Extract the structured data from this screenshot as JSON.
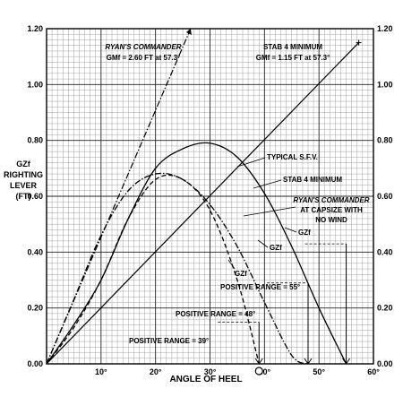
{
  "chart_data": {
    "type": "line",
    "xlabel": "ANGLE OF HEEL",
    "ylabel_lines": [
      "GZf",
      "RIGHTING",
      "LEVER",
      "(FT)"
    ],
    "x_unit": "degrees",
    "xlim": [
      0,
      60
    ],
    "ylim": [
      0,
      1.2
    ],
    "x_ticks": [
      10,
      20,
      30,
      40,
      50,
      60
    ],
    "x_tick_labels": [
      "10°",
      "20°",
      "30°",
      "40°",
      "50°",
      "60°"
    ],
    "y_ticks": [
      0,
      0.2,
      0.4,
      0.6,
      0.8,
      1.0,
      1.2
    ],
    "y_tick_labels": [
      "0.00",
      "0.20",
      "0.40",
      "0.60",
      "0.80",
      "1.00",
      "1.20"
    ],
    "grid": true,
    "series": [
      {
        "name": "RYAN'S COMMANDER",
        "style": "dash-dot",
        "x": [
          0,
          5,
          10,
          15,
          20,
          25,
          30,
          35,
          40,
          45,
          48
        ],
        "y": [
          0,
          0.23,
          0.46,
          0.62,
          0.68,
          0.66,
          0.57,
          0.42,
          0.22,
          0.03,
          0
        ]
      },
      {
        "name": "TYPICAL S.F.V.",
        "style": "solid",
        "x": [
          0,
          5,
          10,
          15,
          20,
          25,
          30,
          35,
          40,
          45,
          50,
          55
        ],
        "y": [
          0,
          0.14,
          0.3,
          0.52,
          0.7,
          0.77,
          0.79,
          0.74,
          0.61,
          0.42,
          0.2,
          0
        ]
      },
      {
        "name": "STAB 4 MINIMUM",
        "style": "dashed",
        "x": [
          0,
          5,
          10,
          15,
          20,
          25,
          30,
          35,
          39
        ],
        "y": [
          0,
          0.13,
          0.3,
          0.52,
          0.66,
          0.66,
          0.55,
          0.3,
          0
        ]
      }
    ],
    "reference_lines": [
      {
        "name": "RYAN'S COMMANDER GMf",
        "x": [
          0,
          57.3
        ],
        "y": [
          0,
          2.6
        ]
      },
      {
        "name": "STAB 4 MINIMUM GMf",
        "x": [
          0,
          57.3
        ],
        "y": [
          0,
          1.15
        ]
      }
    ],
    "annotations": {
      "ryans_gm_title": "RYAN'S COMMANDER",
      "ryans_gm_value": "GMf = 2.60 FT at 57.3°",
      "stab_gm_title": "STAB 4 MINIMUM",
      "stab_gm_value": "GMf = 1.15 FT at 57.3°",
      "typical_sfv": "TYPICAL S.F.V.",
      "stab4_min": "STAB 4 MINIMUM",
      "ryans_capsize_1": "RYAN'S COMMANDER",
      "ryans_capsize_2": "AT CAPSIZE WITH",
      "ryans_capsize_3": "NO WIND",
      "gz_label": "GZf",
      "range_55": "POSITIVE RANGE = 55°",
      "range_48": "POSITIVE RANGE = 48°",
      "range_39": "POSITIVE RANGE = 39°"
    },
    "positive_ranges": [
      55,
      48,
      39
    ]
  }
}
